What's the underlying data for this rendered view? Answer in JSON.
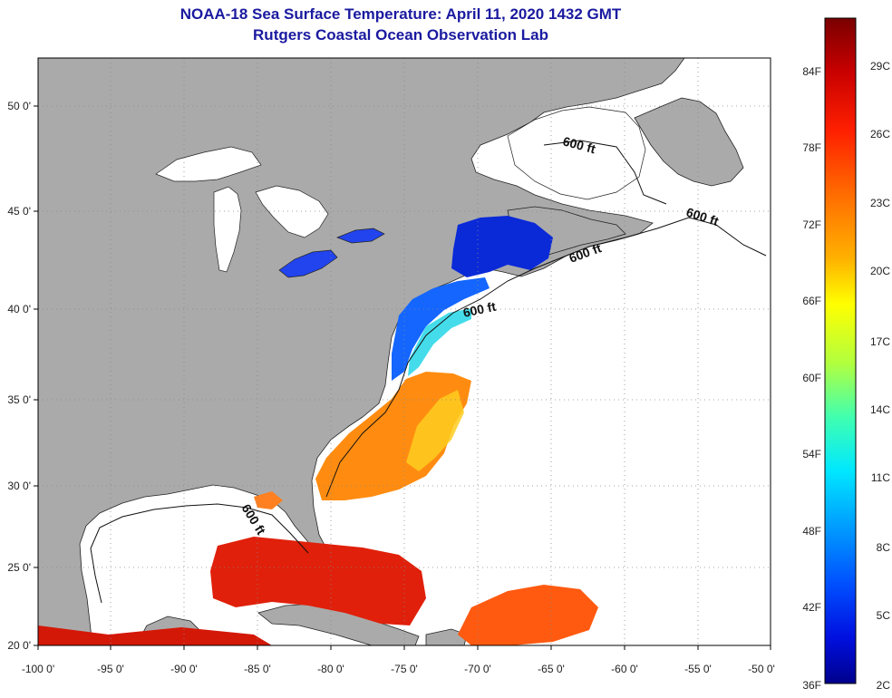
{
  "title": {
    "line1": "NOAA-18 Sea Surface Temperature:  April 11, 2020 1432 GMT",
    "line2": "Rutgers Coastal Ocean Observation Lab"
  },
  "map": {
    "lat_labels": [
      "50 0'",
      "45 0'",
      "40 0'",
      "35 0'",
      "30 0'",
      "25 0'",
      "20 0'"
    ],
    "lon_labels": [
      "-100 0'",
      "-95 0'",
      "-90 0'",
      "-85 0'",
      "-80 0'",
      "-75 0'",
      "-70 0'",
      "-65 0'",
      "-60 0'",
      "-55 0'",
      "-50 0'"
    ],
    "isobath_label": "600 ft"
  },
  "colorbar": {
    "fahrenheit_labels": [
      "84F",
      "78F",
      "72F",
      "66F",
      "60F",
      "54F",
      "48F",
      "42F",
      "36F"
    ],
    "celsius_labels": [
      "29C",
      "26C",
      "23C",
      "20C",
      "17C",
      "14C",
      "11C",
      "8C",
      "5C",
      "2C"
    ],
    "colors": [
      "#7a0000",
      "#c80000",
      "#ff2000",
      "#ff7000",
      "#ffb000",
      "#ffff00",
      "#b0ff40",
      "#40ffb0",
      "#00e8ff",
      "#00a0ff",
      "#0050ff",
      "#0010e0",
      "#00008c"
    ]
  }
}
